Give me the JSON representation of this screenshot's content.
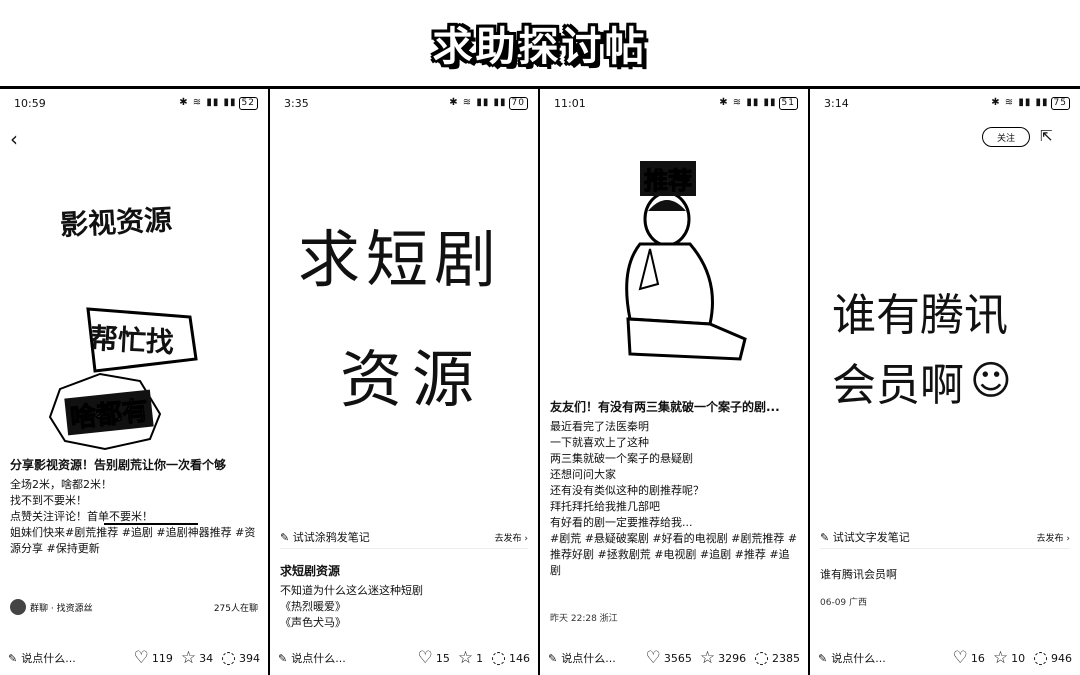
{
  "header": {
    "title": "求助探讨帖"
  },
  "screens": [
    {
      "status": {
        "time": "10:59",
        "battery": "52"
      },
      "hero": {
        "lines": [
          "影视资源",
          "帮忙找",
          "啥都有"
        ]
      },
      "caption": {
        "title": "分享影视资源！告别剧荒让你一次看个够",
        "lines": [
          "全场2米，啥都2米！",
          "找不到不要米！",
          "点赞关注评论！首单不要米！",
          "姐妹们快来#剧荒推荐 #追剧 #追剧神器推荐 #资源分享 #保持更新"
        ]
      },
      "author": {
        "name": "群聊 · 找资源丝",
        "count": "275人在聊"
      },
      "bottom": {
        "say": "说点什么...",
        "likes": "119",
        "stars": "34",
        "comments": "394"
      }
    },
    {
      "status": {
        "time": "3:35",
        "battery": "70"
      },
      "hero": {
        "lines": [
          "求短剧",
          "资源"
        ]
      },
      "try": {
        "label": "试试涂鸦发笔记",
        "go": "去发布"
      },
      "caption": {
        "title": "求短剧资源",
        "lines": [
          "不知道为什么这么迷这种短剧",
          "《热烈暖爱》",
          "《声色犬马》"
        ]
      },
      "bottom": {
        "say": "说点什么...",
        "likes": "15",
        "stars": "1",
        "comments": "146"
      }
    },
    {
      "status": {
        "time": "11:01",
        "battery": "51"
      },
      "hero": {
        "label": "推荐"
      },
      "caption": {
        "title": "友友们！有没有两三集就破一个案子的剧...",
        "lines": [
          "最近看完了法医秦明",
          "一下就喜欢上了这种",
          "两三集就破一个案子的悬疑剧",
          "还想问问大家",
          "还有没有类似这种的剧推荐呢？",
          "拜托拜托给我推几部吧",
          "有好看的剧一定要推荐给我...",
          "#剧荒 #悬疑破案剧 #好看的电视剧 #剧荒推荐 #推荐好剧 #拯救剧荒 #电视剧 #追剧 #推荐 #追剧"
        ]
      },
      "meta": "昨天 22:28 浙江",
      "bottom": {
        "say": "说点什么...",
        "likes": "3565",
        "stars": "3296",
        "comments": "2385"
      }
    },
    {
      "status": {
        "time": "3:14",
        "battery": "75"
      },
      "follow": "关注",
      "hero": {
        "lines": [
          "谁有腾讯",
          "会员啊"
        ]
      },
      "try": {
        "label": "试试文字发笔记",
        "go": "去发布"
      },
      "caption": {
        "title": "谁有腾讯会员啊",
        "lines": []
      },
      "meta": "06-09 广西",
      "bottom": {
        "say": "说点什么...",
        "likes": "16",
        "stars": "10",
        "comments": "946"
      }
    }
  ]
}
